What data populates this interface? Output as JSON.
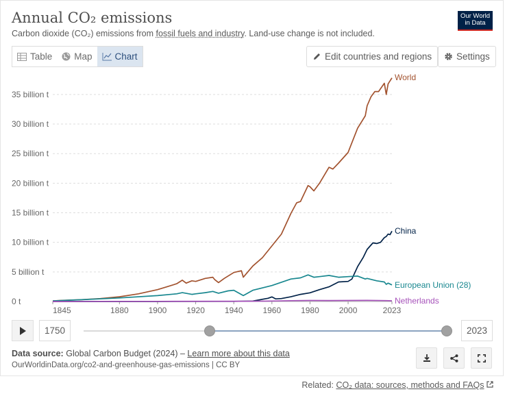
{
  "header": {
    "title": "Annual CO₂ emissions",
    "subtitle_pre": "Carbon dioxide (CO₂) emissions from ",
    "subtitle_link": "fossil fuels and industry",
    "subtitle_post": ". Land-use change is not included.",
    "logo_line1": "Our World",
    "logo_line2": "in Data"
  },
  "tabs": [
    {
      "label": "Table",
      "icon": "table-icon"
    },
    {
      "label": "Map",
      "icon": "globe-icon"
    },
    {
      "label": "Chart",
      "icon": "line-chart-icon",
      "active": true
    }
  ],
  "toolbar": {
    "edit_label": "Edit countries and regions",
    "settings_label": "Settings"
  },
  "timeline": {
    "start_year": "1750",
    "end_year": "2023",
    "range_min": 1750,
    "range_max": 2023,
    "selected_start": 1845,
    "selected_end": 2023
  },
  "footer": {
    "source_label": "Data source:",
    "source_text": "Global Carbon Budget (2024) – ",
    "source_link": "Learn more about this data",
    "url": "OurWorldinData.org/co2-and-greenhouse-gas-emissions | CC BY",
    "related_label": "Related: ",
    "related_link": "CO₂ data: sources, methods and FAQs"
  },
  "chart_data": {
    "type": "line",
    "title": "Annual CO₂ emissions",
    "xlim": [
      1845,
      2023
    ],
    "ylim": [
      0,
      38
    ],
    "x_ticks": [
      1845,
      1880,
      1900,
      1920,
      1940,
      1960,
      1980,
      2000,
      2023
    ],
    "y_ticks": [
      {
        "value": 0,
        "label": "0 t"
      },
      {
        "value": 5,
        "label": "5 billion t"
      },
      {
        "value": 10,
        "label": "10 billion t"
      },
      {
        "value": 15,
        "label": "15 billion t"
      },
      {
        "value": 20,
        "label": "20 billion t"
      },
      {
        "value": 25,
        "label": "25 billion t"
      },
      {
        "value": 30,
        "label": "30 billion t"
      },
      {
        "value": 35,
        "label": "35 billion t"
      }
    ],
    "grid": true,
    "series": [
      {
        "name": "World",
        "color": "#a2522e",
        "points": [
          [
            1845,
            0.1
          ],
          [
            1850,
            0.2
          ],
          [
            1860,
            0.3
          ],
          [
            1870,
            0.5
          ],
          [
            1880,
            0.8
          ],
          [
            1890,
            1.3
          ],
          [
            1900,
            2.0
          ],
          [
            1905,
            2.5
          ],
          [
            1910,
            3.0
          ],
          [
            1913,
            3.6
          ],
          [
            1915,
            3.1
          ],
          [
            1918,
            3.5
          ],
          [
            1920,
            3.4
          ],
          [
            1925,
            3.9
          ],
          [
            1929,
            4.1
          ],
          [
            1930,
            3.7
          ],
          [
            1932,
            3.2
          ],
          [
            1935,
            3.9
          ],
          [
            1940,
            4.9
          ],
          [
            1944,
            5.2
          ],
          [
            1945,
            4.1
          ],
          [
            1950,
            6.0
          ],
          [
            1955,
            7.4
          ],
          [
            1960,
            9.4
          ],
          [
            1965,
            11.4
          ],
          [
            1970,
            14.9
          ],
          [
            1973,
            16.7
          ],
          [
            1975,
            16.9
          ],
          [
            1979,
            19.6
          ],
          [
            1980,
            19.4
          ],
          [
            1982,
            18.7
          ],
          [
            1985,
            20.0
          ],
          [
            1990,
            22.7
          ],
          [
            1992,
            22.4
          ],
          [
            1995,
            23.4
          ],
          [
            2000,
            25.2
          ],
          [
            2005,
            29.3
          ],
          [
            2009,
            31.4
          ],
          [
            2010,
            33.1
          ],
          [
            2012,
            34.6
          ],
          [
            2014,
            35.5
          ],
          [
            2016,
            35.5
          ],
          [
            2019,
            36.9
          ],
          [
            2020,
            35.0
          ],
          [
            2021,
            36.8
          ],
          [
            2023,
            37.8
          ]
        ]
      },
      {
        "name": "China",
        "color": "#002147",
        "points": [
          [
            1845,
            0
          ],
          [
            1900,
            0
          ],
          [
            1940,
            0.02
          ],
          [
            1950,
            0.08
          ],
          [
            1958,
            0.55
          ],
          [
            1960,
            0.78
          ],
          [
            1962,
            0.44
          ],
          [
            1965,
            0.5
          ],
          [
            1970,
            0.8
          ],
          [
            1975,
            1.2
          ],
          [
            1980,
            1.47
          ],
          [
            1985,
            2.0
          ],
          [
            1990,
            2.48
          ],
          [
            1995,
            3.3
          ],
          [
            2000,
            3.4
          ],
          [
            2002,
            3.8
          ],
          [
            2005,
            5.9
          ],
          [
            2008,
            7.5
          ],
          [
            2010,
            8.8
          ],
          [
            2013,
            9.9
          ],
          [
            2015,
            9.8
          ],
          [
            2017,
            10.0
          ],
          [
            2019,
            10.8
          ],
          [
            2020,
            11.0
          ],
          [
            2021,
            11.4
          ],
          [
            2022,
            11.3
          ],
          [
            2023,
            11.9
          ]
        ]
      },
      {
        "name": "European Union (28)",
        "color": "#18878f",
        "points": [
          [
            1845,
            0.1
          ],
          [
            1860,
            0.3
          ],
          [
            1880,
            0.6
          ],
          [
            1900,
            1.0
          ],
          [
            1910,
            1.3
          ],
          [
            1913,
            1.5
          ],
          [
            1918,
            1.2
          ],
          [
            1920,
            1.3
          ],
          [
            1925,
            1.5
          ],
          [
            1929,
            1.7
          ],
          [
            1932,
            1.4
          ],
          [
            1937,
            1.8
          ],
          [
            1940,
            1.9
          ],
          [
            1945,
            1.0
          ],
          [
            1950,
            1.9
          ],
          [
            1960,
            2.7
          ],
          [
            1970,
            3.8
          ],
          [
            1975,
            4.0
          ],
          [
            1979,
            4.5
          ],
          [
            1982,
            4.1
          ],
          [
            1985,
            4.2
          ],
          [
            1990,
            4.4
          ],
          [
            1995,
            4.1
          ],
          [
            2000,
            4.2
          ],
          [
            2005,
            4.3
          ],
          [
            2009,
            3.8
          ],
          [
            2010,
            3.9
          ],
          [
            2015,
            3.5
          ],
          [
            2019,
            3.3
          ],
          [
            2020,
            2.9
          ],
          [
            2021,
            3.1
          ],
          [
            2023,
            2.8
          ]
        ]
      },
      {
        "name": "Netherlands",
        "color": "#a652ba",
        "points": [
          [
            1845,
            0
          ],
          [
            1900,
            0.02
          ],
          [
            1950,
            0.05
          ],
          [
            1960,
            0.08
          ],
          [
            1970,
            0.14
          ],
          [
            1980,
            0.17
          ],
          [
            1990,
            0.16
          ],
          [
            2000,
            0.17
          ],
          [
            2010,
            0.18
          ],
          [
            2020,
            0.15
          ],
          [
            2023,
            0.12
          ]
        ]
      }
    ]
  }
}
